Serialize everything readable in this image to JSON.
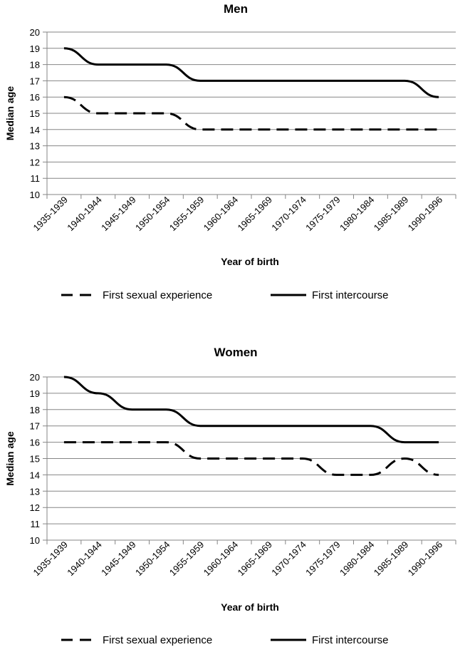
{
  "chart_data": [
    {
      "type": "line",
      "title": "Men",
      "xlabel": "Year of birth",
      "ylabel": "Median age",
      "ylim": [
        10,
        20
      ],
      "yticks": [
        "10",
        "11",
        "12",
        "13",
        "14",
        "15",
        "16",
        "17",
        "18",
        "19",
        "20"
      ],
      "grid": true,
      "legend_position": "bottom",
      "categories": [
        "1935-1939",
        "1940-1944",
        "1945-1949",
        "1950-1954",
        "1955-1959",
        "1960-1964",
        "1965-1969",
        "1970-1974",
        "1975-1979",
        "1980-1984",
        "1985-1989",
        "1990-1996"
      ],
      "series": [
        {
          "name": "First sexual experience",
          "style": "dashed",
          "color": "#000000",
          "values": [
            16,
            15,
            15,
            15,
            14,
            14,
            14,
            14,
            14,
            14,
            14,
            14
          ]
        },
        {
          "name": "First intercourse",
          "style": "solid",
          "color": "#000000",
          "values": [
            19,
            18,
            18,
            18,
            17,
            17,
            17,
            17,
            17,
            17,
            17,
            16
          ]
        }
      ]
    },
    {
      "type": "line",
      "title": "Women",
      "xlabel": "Year of birth",
      "ylabel": "Median age",
      "ylim": [
        10,
        20
      ],
      "yticks": [
        "10",
        "11",
        "12",
        "13",
        "14",
        "15",
        "16",
        "17",
        "18",
        "19",
        "20"
      ],
      "grid": true,
      "legend_position": "bottom",
      "categories": [
        "1935-1939",
        "1940-1944",
        "1945-1949",
        "1950-1954",
        "1955-1959",
        "1960-1964",
        "1965-1969",
        "1970-1974",
        "1975-1979",
        "1980-1984",
        "1985-1989",
        "1990-1996"
      ],
      "series": [
        {
          "name": "First sexual experience",
          "style": "dashed",
          "color": "#000000",
          "values": [
            16,
            16,
            16,
            16,
            15,
            15,
            15,
            15,
            14,
            14,
            15,
            14
          ]
        },
        {
          "name": "First intercourse",
          "style": "solid",
          "color": "#000000",
          "values": [
            20,
            19,
            18,
            18,
            17,
            17,
            17,
            17,
            17,
            17,
            16,
            16
          ]
        }
      ]
    }
  ]
}
